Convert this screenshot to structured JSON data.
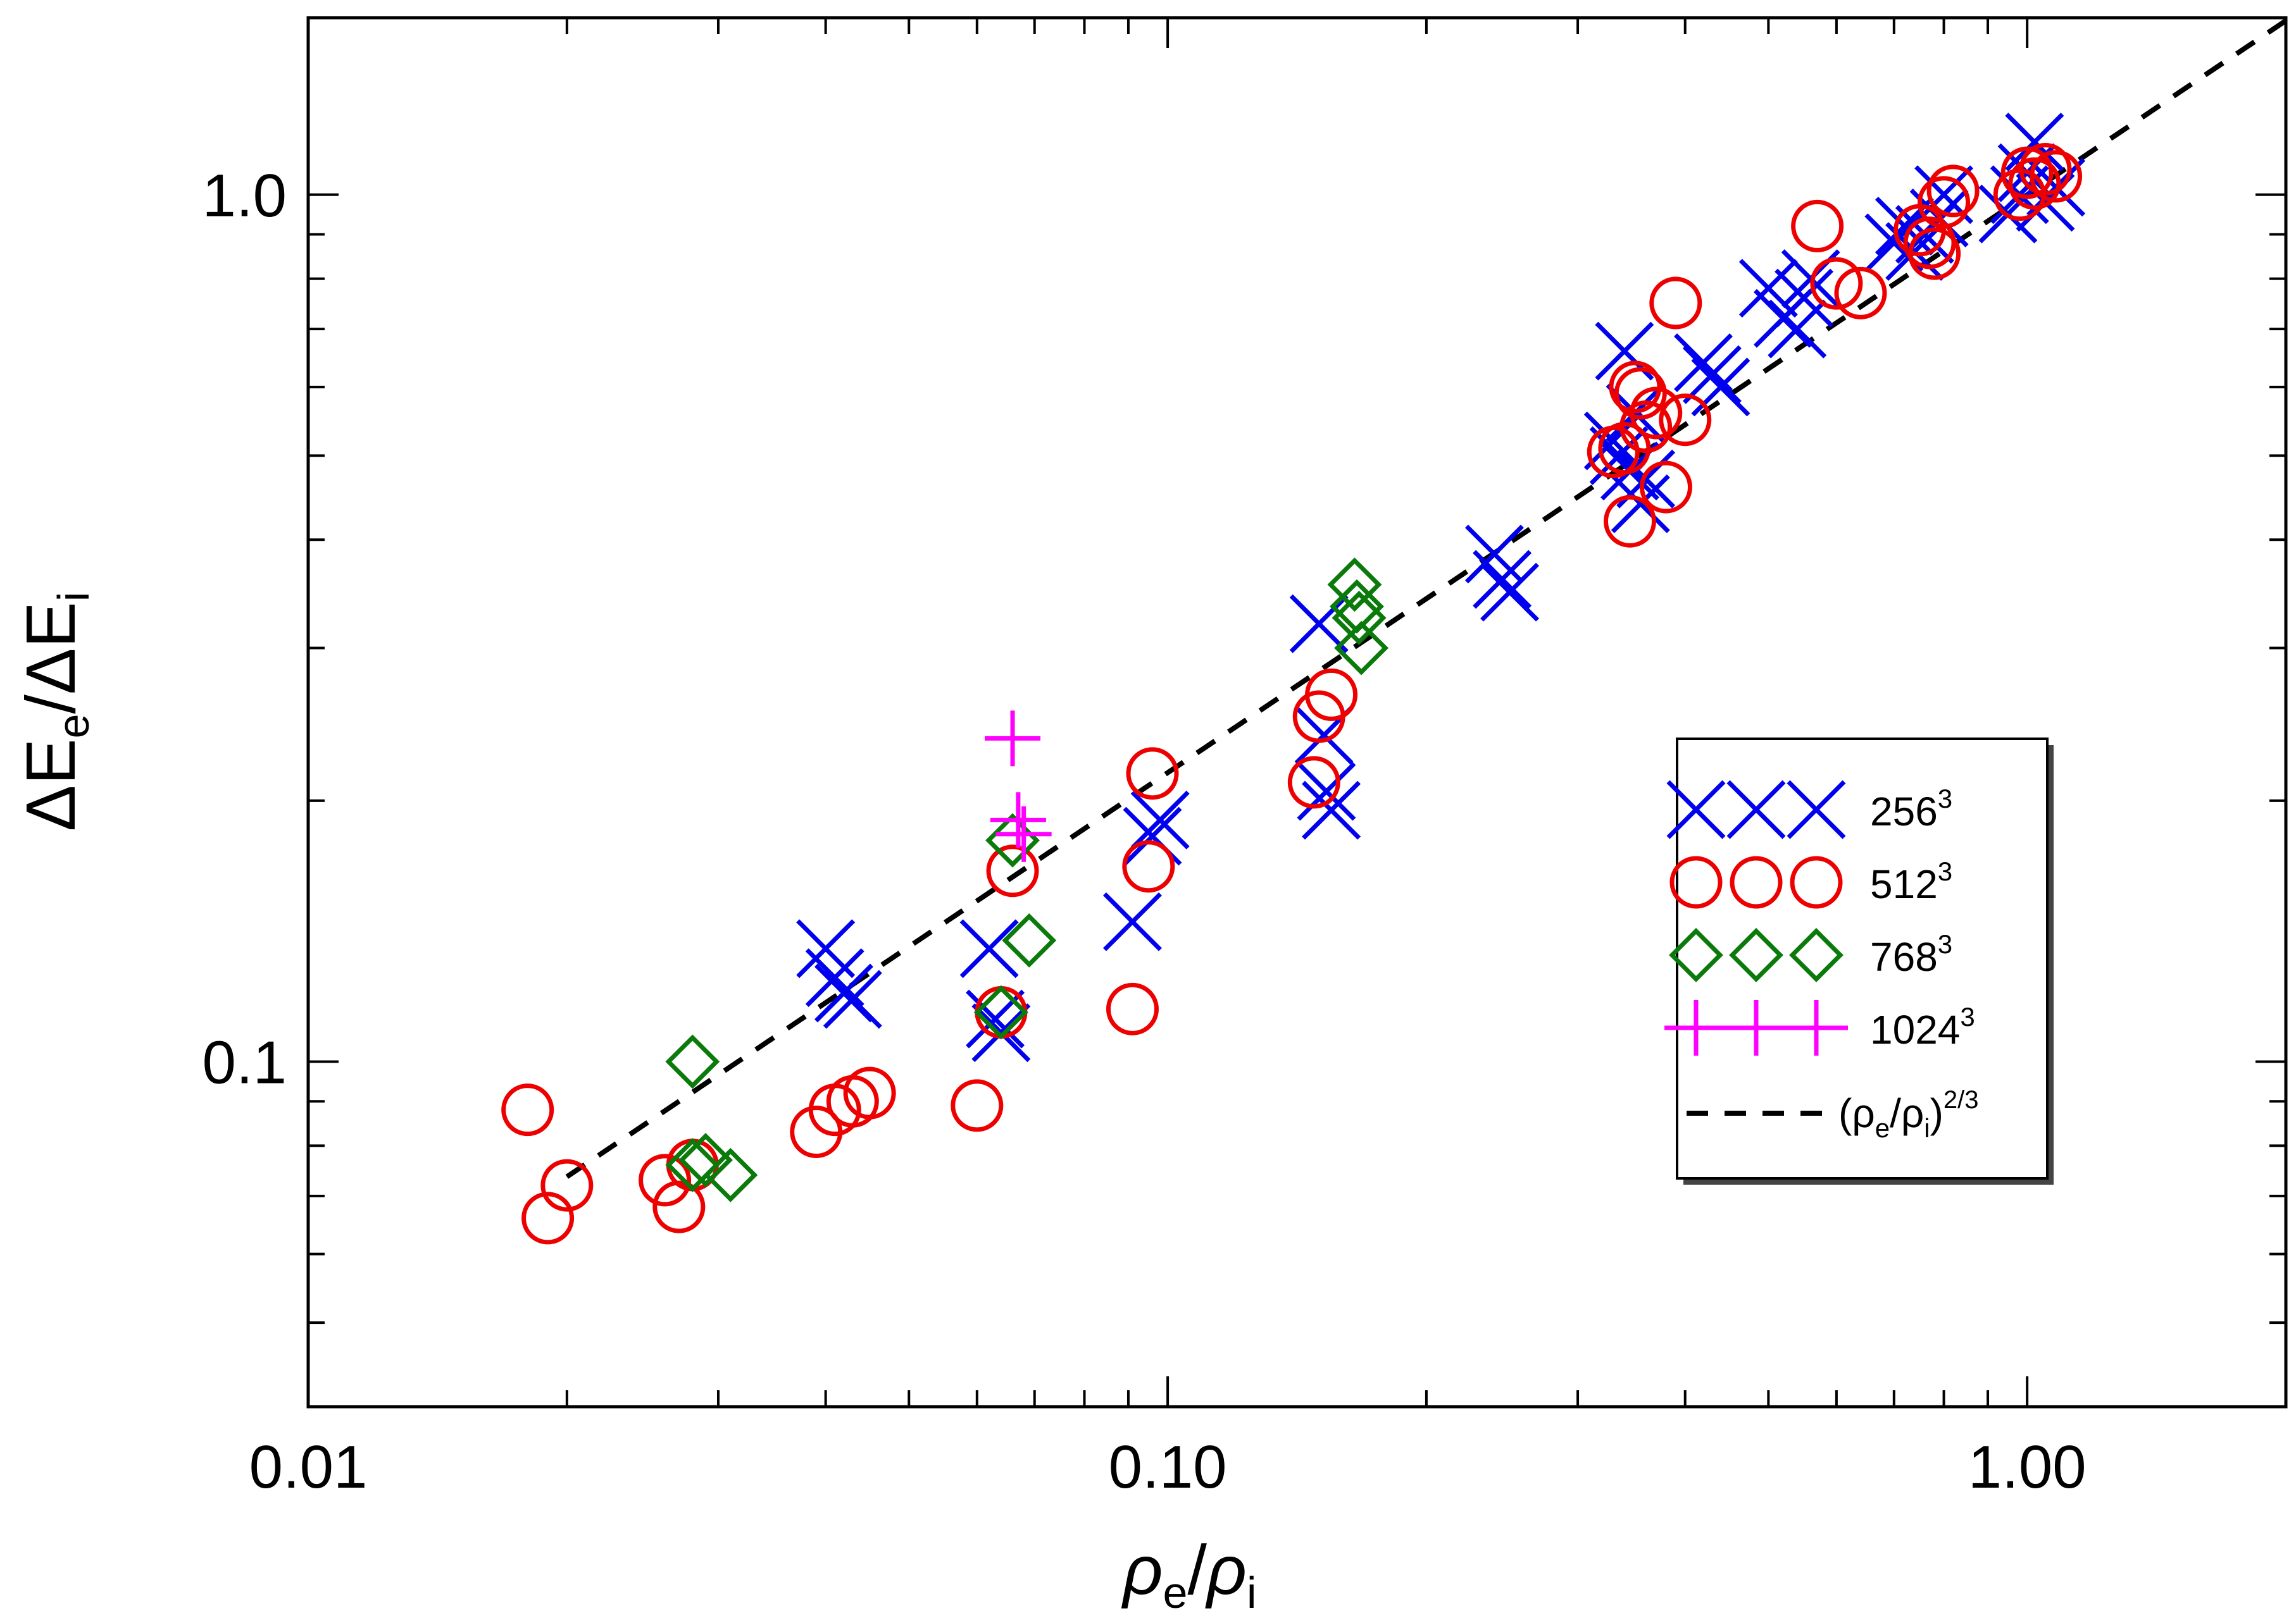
{
  "chart_data": {
    "type": "scatter",
    "title": "",
    "xscale": "log",
    "yscale": "log",
    "xlim": [
      0.01,
      2.0
    ],
    "ylim": [
      0.04,
      1.6
    ],
    "xlabel": {
      "main1": "ρ",
      "sub1": "e",
      "slash": "/",
      "main2": "ρ",
      "sub2": "i"
    },
    "ylabel": {
      "main1": "ΔE",
      "sub1": "e",
      "slash": "/",
      "main2": "ΔE",
      "sub2": "i"
    },
    "xticks": [
      {
        "value": 0.01,
        "label": "0.01"
      },
      {
        "value": 0.1,
        "label": "0.10"
      },
      {
        "value": 1.0,
        "label": "1.00"
      }
    ],
    "yticks": [
      {
        "value": 0.1,
        "label": "0.1"
      },
      {
        "value": 1.0,
        "label": "1.0"
      }
    ],
    "legend_position": "right",
    "series": [
      {
        "name": "256",
        "sup": "3",
        "marker": "x",
        "color": "#0000ee",
        "points": [
          [
            0.04,
            0.135
          ],
          [
            0.041,
            0.125
          ],
          [
            0.042,
            0.12
          ],
          [
            0.043,
            0.118
          ],
          [
            0.062,
            0.135
          ],
          [
            0.063,
            0.112
          ],
          [
            0.064,
            0.108
          ],
          [
            0.091,
            0.145
          ],
          [
            0.096,
            0.182
          ],
          [
            0.098,
            0.19
          ],
          [
            0.15,
            0.32
          ],
          [
            0.152,
            0.238
          ],
          [
            0.153,
            0.205
          ],
          [
            0.155,
            0.195
          ],
          [
            0.24,
            0.385
          ],
          [
            0.245,
            0.36
          ],
          [
            0.25,
            0.348
          ],
          [
            0.33,
            0.52
          ],
          [
            0.335,
            0.5
          ],
          [
            0.34,
            0.66
          ],
          [
            0.345,
            0.48
          ],
          [
            0.35,
            0.56
          ],
          [
            0.355,
            0.44
          ],
          [
            0.36,
            0.47
          ],
          [
            0.42,
            0.64
          ],
          [
            0.43,
            0.62
          ],
          [
            0.44,
            0.6
          ],
          [
            0.5,
            0.78
          ],
          [
            0.52,
            0.72
          ],
          [
            0.54,
            0.7
          ],
          [
            0.55,
            0.76
          ],
          [
            0.56,
            0.8
          ],
          [
            0.7,
            0.88
          ],
          [
            0.72,
            0.92
          ],
          [
            0.74,
            0.86
          ],
          [
            0.76,
            0.9
          ],
          [
            0.79,
            0.94
          ],
          [
            0.8,
            1.0
          ],
          [
            0.95,
            0.95
          ],
          [
            0.98,
            1.0
          ],
          [
            1.0,
            1.06
          ],
          [
            1.02,
            1.15
          ],
          [
            1.05,
            0.98
          ],
          [
            1.08,
            1.02
          ]
        ]
      },
      {
        "name": "512",
        "sup": "3",
        "marker": "circle",
        "color": "#ee0000",
        "points": [
          [
            0.018,
            0.088
          ],
          [
            0.019,
            0.066
          ],
          [
            0.02,
            0.072
          ],
          [
            0.026,
            0.073
          ],
          [
            0.027,
            0.068
          ],
          [
            0.028,
            0.076
          ],
          [
            0.039,
            0.083
          ],
          [
            0.041,
            0.088
          ],
          [
            0.043,
            0.09
          ],
          [
            0.045,
            0.092
          ],
          [
            0.06,
            0.089
          ],
          [
            0.064,
            0.114
          ],
          [
            0.066,
            0.166
          ],
          [
            0.091,
            0.115
          ],
          [
            0.095,
            0.168
          ],
          [
            0.096,
            0.215
          ],
          [
            0.148,
            0.21
          ],
          [
            0.15,
            0.25
          ],
          [
            0.155,
            0.265
          ],
          [
            0.33,
            0.505
          ],
          [
            0.34,
            0.51
          ],
          [
            0.345,
            0.42
          ],
          [
            0.35,
            0.6
          ],
          [
            0.355,
            0.59
          ],
          [
            0.36,
            0.54
          ],
          [
            0.37,
            0.56
          ],
          [
            0.38,
            0.46
          ],
          [
            0.39,
            0.75
          ],
          [
            0.4,
            0.55
          ],
          [
            0.57,
            0.92
          ],
          [
            0.6,
            0.79
          ],
          [
            0.64,
            0.77
          ],
          [
            0.75,
            0.91
          ],
          [
            0.77,
            0.88
          ],
          [
            0.78,
            0.855
          ],
          [
            0.8,
            0.98
          ],
          [
            0.82,
            1.01
          ],
          [
            0.98,
            1.0
          ],
          [
            1.0,
            1.06
          ],
          [
            1.02,
            1.03
          ],
          [
            1.05,
            1.07
          ],
          [
            1.08,
            1.05
          ]
        ]
      },
      {
        "name": "768",
        "sup": "3",
        "marker": "diamond",
        "color": "#0a7a0a",
        "points": [
          [
            0.028,
            0.1
          ],
          [
            0.028,
            0.076
          ],
          [
            0.029,
            0.077
          ],
          [
            0.031,
            0.074
          ],
          [
            0.064,
            0.114
          ],
          [
            0.066,
            0.18
          ],
          [
            0.069,
            0.138
          ],
          [
            0.165,
            0.355
          ],
          [
            0.166,
            0.335
          ],
          [
            0.167,
            0.325
          ],
          [
            0.168,
            0.3
          ]
        ]
      },
      {
        "name": "1024",
        "sup": "3",
        "marker": "plus",
        "color": "#ff00ff",
        "points": [
          [
            0.066,
            0.236
          ],
          [
            0.067,
            0.19
          ],
          [
            0.068,
            0.183
          ]
        ]
      },
      {
        "name": "(ρ",
        "label_parts": {
          "open": "(ρ",
          "sub1": "e",
          "slash": "/ρ",
          "sub2": "i",
          "close": ")",
          "exp": "2/3"
        },
        "marker": "line-dashed",
        "color": "#000000",
        "curve": "y = x^(2/3)",
        "x_range": [
          0.02,
          2.0
        ]
      }
    ]
  }
}
